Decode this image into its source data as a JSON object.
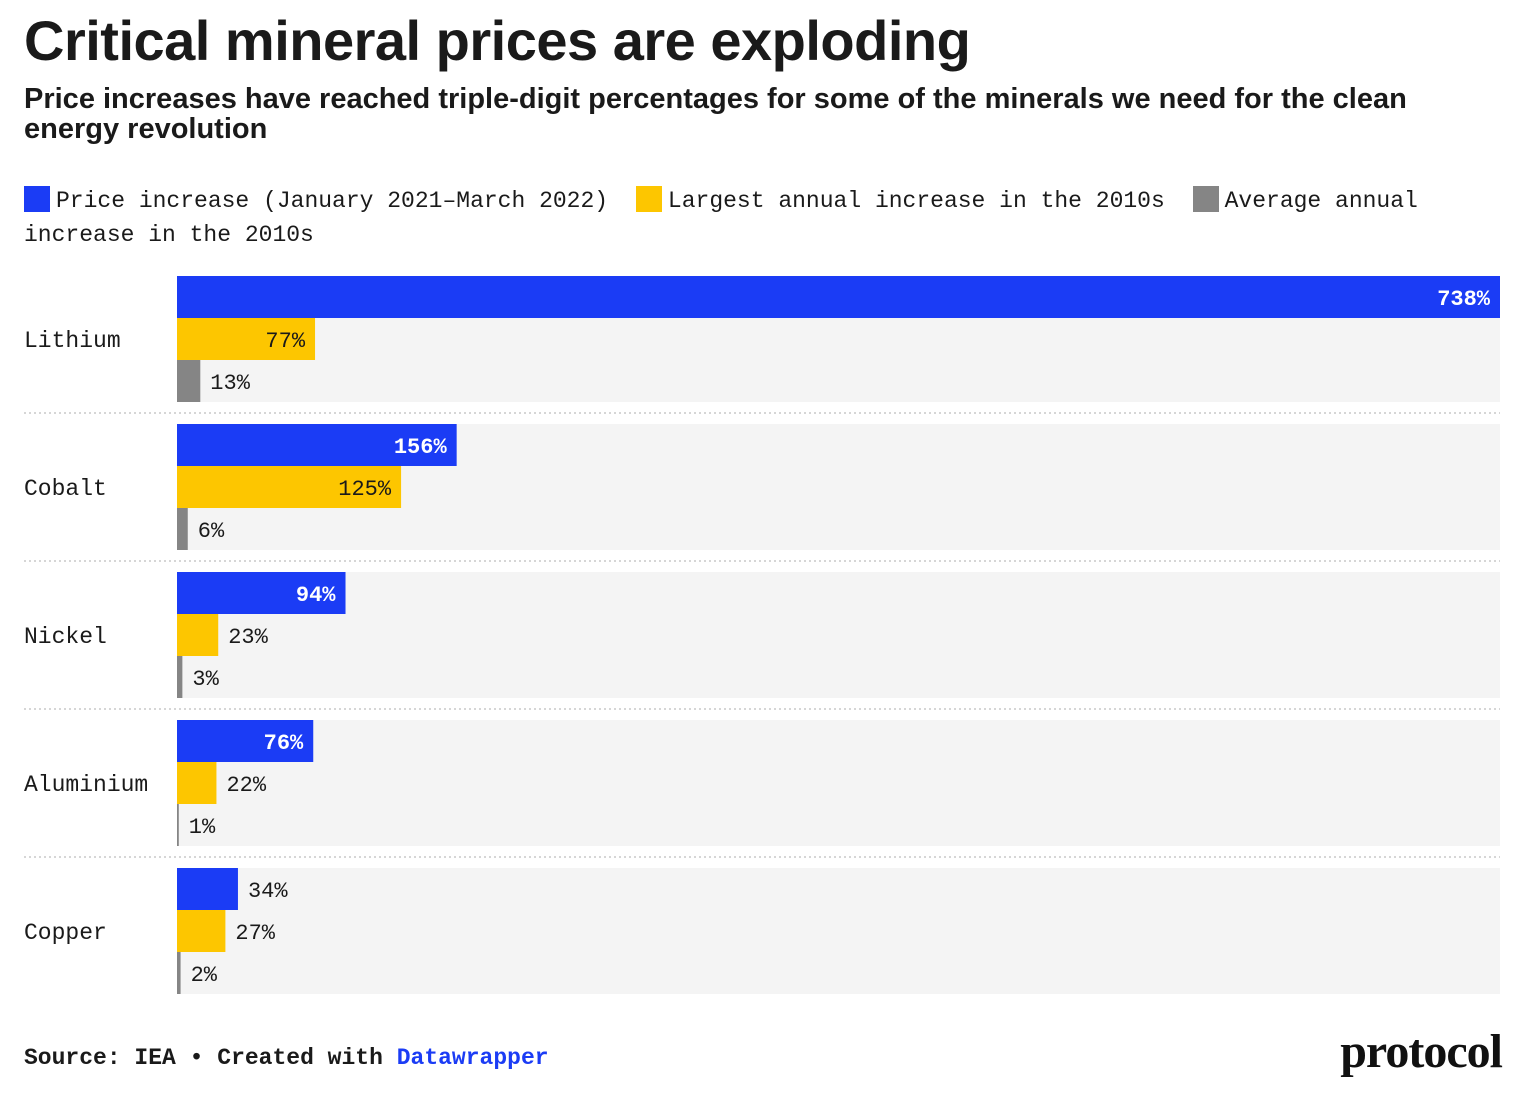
{
  "header": {
    "title": "Critical mineral prices are exploding",
    "subtitle": "Price increases have reached triple-digit percentages for some of the minerals we need for the clean energy revolution"
  },
  "legend": [
    {
      "label": "Price increase (January 2021–March 2022)",
      "color": "#1b3cf5"
    },
    {
      "label": "Largest annual increase in the 2010s",
      "color": "#fdc600"
    },
    {
      "label": "Average annual increase in the 2010s",
      "color": "#858585"
    }
  ],
  "footer": {
    "source": "Source: IEA",
    "separator": "•",
    "created_with": "Created with",
    "tool": "Datawrapper"
  },
  "brand": {
    "logo_text": "protocol"
  },
  "colors": {
    "blue": "#1b3cf5",
    "yellow": "#fdc600",
    "gray": "#858585",
    "row_background": "#f4f4f4",
    "text": "#1a1a1a"
  },
  "chart_data": {
    "type": "bar",
    "orientation": "horizontal",
    "grouped": true,
    "categories": [
      "Lithium",
      "Cobalt",
      "Nickel",
      "Aluminium",
      "Copper"
    ],
    "series": [
      {
        "name": "Price increase (January 2021–March 2022)",
        "values": [
          738,
          156,
          94,
          76,
          34
        ],
        "labels": [
          "738%",
          "156%",
          "94%",
          "76%",
          "34%"
        ]
      },
      {
        "name": "Largest annual increase in the 2010s",
        "values": [
          77,
          125,
          23,
          22,
          27
        ],
        "labels": [
          "77%",
          "125%",
          "23%",
          "22%",
          "27%"
        ]
      },
      {
        "name": "Average annual increase in the 2010s",
        "values": [
          13,
          6,
          3,
          1,
          2
        ],
        "labels": [
          "13%",
          "6%",
          "3%",
          "1%",
          "2%"
        ]
      }
    ],
    "unit": "%",
    "xlim": [
      0,
      738
    ],
    "grid": false,
    "legend_position": "top",
    "value_labels": true
  }
}
